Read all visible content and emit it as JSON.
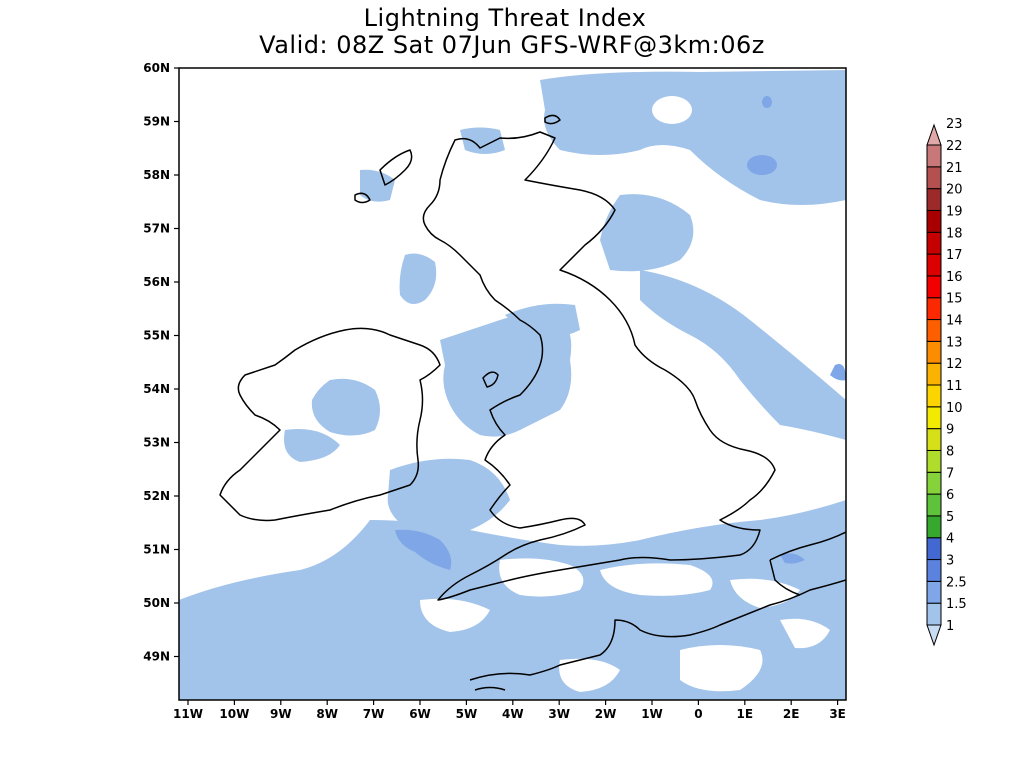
{
  "title": {
    "line1": "Lightning Threat Index",
    "line2": "Valid: 08Z Sat 07Jun GFS-WRF@3km:06z"
  },
  "latitude_labels": [
    "60N",
    "59N",
    "58N",
    "57N",
    "56N",
    "55N",
    "54N",
    "53N",
    "52N",
    "51N",
    "50N",
    "49N"
  ],
  "longitude_labels": [
    "11W",
    "10W",
    "9W",
    "8W",
    "7W",
    "6W",
    "5W",
    "4W",
    "3W",
    "2W",
    "1W",
    "0",
    "1E",
    "2E",
    "3E"
  ],
  "legend": {
    "labels": [
      "1",
      "1.5",
      "2.5",
      "3",
      "4",
      "5",
      "6",
      "7",
      "8",
      "9",
      "10",
      "11",
      "12",
      "13",
      "14",
      "15",
      "16",
      "17",
      "18",
      "19",
      "20",
      "21",
      "22",
      "23"
    ],
    "colors": [
      "#c8dcf4",
      "#a3c4ea",
      "#7fa6e6",
      "#5b82de",
      "#4468d2",
      "#36a82e",
      "#5ec23a",
      "#86d23a",
      "#b0dc2c",
      "#d6e018",
      "#f2ea00",
      "#fcd400",
      "#fcb200",
      "#fc8c00",
      "#fc5e00",
      "#fc2800",
      "#f20000",
      "#dc0000",
      "#c40000",
      "#a80000",
      "#9c2a2a",
      "#b45050",
      "#c87878",
      "#e0a8a8"
    ]
  },
  "shading_colors": {
    "light": "#a3c4ea",
    "medium": "#7fa6e6"
  }
}
